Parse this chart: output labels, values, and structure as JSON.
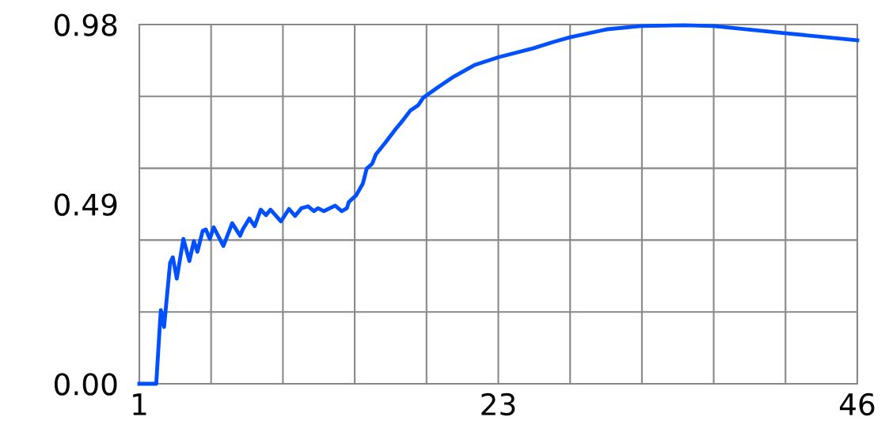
{
  "chart_data": {
    "type": "line",
    "x": [
      1,
      2.06,
      2.28,
      2.35,
      2.55,
      2.93,
      3.1,
      3.35,
      3.76,
      4.14,
      4.42,
      4.64,
      4.97,
      5.17,
      5.42,
      5.66,
      6.27,
      6.82,
      7.32,
      7.48,
      7.9,
      8.23,
      8.61,
      8.94,
      9.22,
      9.88,
      10.38,
      10.76,
      11.16,
      11.58,
      11.95,
      12.2,
      12.57,
      13.27,
      13.69,
      14.01,
      14.13,
      14.59,
      15.01,
      15.25,
      15.59,
      15.83,
      16.42,
      17.07,
      17.49,
      17.98,
      18.48,
      18.81,
      19.72,
      20.71,
      22.04,
      23.52,
      25.67,
      27.0,
      27.99,
      30.31,
      32.45,
      35.1,
      37.0,
      41.55,
      46
    ],
    "series": [
      {
        "color": "#0050ff",
        "values": [
          0,
          0,
          0.155,
          0.201,
          0.155,
          0.33,
          0.345,
          0.287,
          0.395,
          0.335,
          0.389,
          0.36,
          0.417,
          0.421,
          0.395,
          0.427,
          0.376,
          0.438,
          0.404,
          0.421,
          0.451,
          0.43,
          0.475,
          0.46,
          0.475,
          0.443,
          0.477,
          0.458,
          0.479,
          0.484,
          0.471,
          0.479,
          0.471,
          0.486,
          0.471,
          0.479,
          0.496,
          0.514,
          0.546,
          0.587,
          0.6,
          0.626,
          0.658,
          0.695,
          0.717,
          0.745,
          0.76,
          0.781,
          0.809,
          0.838,
          0.87,
          0.891,
          0.915,
          0.933,
          0.945,
          0.967,
          0.976,
          0.978,
          0.976,
          0.956,
          0.937
        ]
      }
    ],
    "xlim": [
      1,
      46
    ],
    "xticks": [
      1,
      {
        "value": 5.5,
        "label": null
      },
      {
        "value": 10,
        "label": null
      },
      {
        "value": 14.5,
        "label": null
      },
      {
        "value": 19,
        "label": null
      },
      {
        "value": 23.5,
        "label": "23"
      },
      {
        "value": 28,
        "label": null
      },
      {
        "value": 32.5,
        "label": null
      },
      {
        "value": 37,
        "label": null
      },
      {
        "value": 41.5,
        "label": null
      },
      46
    ],
    "ylim": [
      0,
      0.98
    ],
    "yticks": [
      {
        "value": 0,
        "label": "0.00"
      },
      {
        "value": 0.196,
        "label": null
      },
      {
        "value": 0.392,
        "label": null
      },
      {
        "value": 0.49,
        "label": "0.49"
      },
      {
        "value": 0.588,
        "label": null
      },
      {
        "value": 0.784,
        "label": null
      },
      0.98
    ],
    "grid": true,
    "marker": "none",
    "line_style": "solid"
  }
}
